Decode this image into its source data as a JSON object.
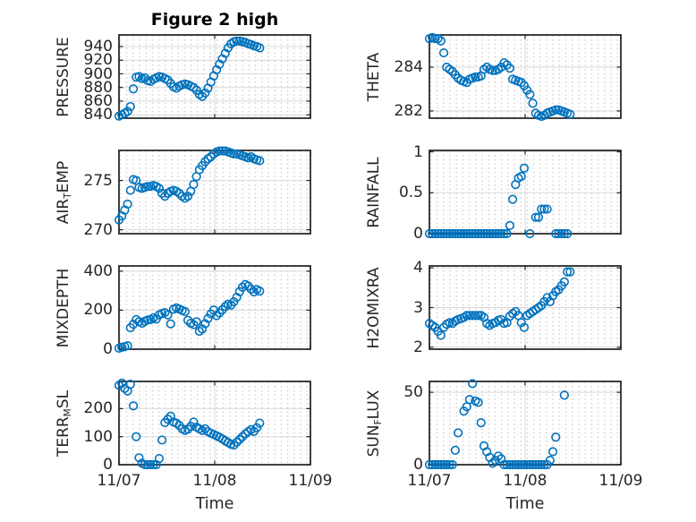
{
  "style": {
    "marker_color": "#0072BD",
    "axis_color": "#1f1f1f",
    "grid_color": "#d9d9d9",
    "minor_dot_color": "#c9c9c9",
    "tick_text_color": "#262626",
    "background": "#ffffff"
  },
  "chart_data": {
    "type": "scatter",
    "title": "Figure 2 high",
    "xlabel": "Time",
    "marker": {
      "shape": "circle-open",
      "color": "#0072BD"
    },
    "layout": {
      "rows": 4,
      "cols": 2,
      "grid": "on",
      "minor_grid": "dotted"
    },
    "x_axis": {
      "xlim_days": [
        0,
        2
      ],
      "tick_positions_days": [
        0,
        1,
        2
      ],
      "tick_labels": [
        "11/07",
        "11/08",
        "11/09"
      ]
    },
    "time_step_days": 0.03,
    "subplots": [
      {
        "name": "PRESSURE",
        "row": 0,
        "col": 0,
        "ylabel_parts": [
          {
            "t": "PRESSURE"
          }
        ],
        "ylim": [
          835,
          957
        ],
        "yticks": [
          840,
          860,
          880,
          900,
          920,
          940
        ],
        "ytick_labels": [
          "840",
          "860",
          "880",
          "900",
          "920",
          "940"
        ],
        "values": [
          838,
          840,
          842,
          845,
          852,
          878,
          895,
          896,
          893,
          894,
          890,
          889,
          892,
          894,
          896,
          895,
          893,
          891,
          886,
          881,
          879,
          882,
          884,
          885,
          884,
          882,
          880,
          876,
          870,
          867,
          872,
          879,
          888,
          897,
          906,
          914,
          922,
          930,
          938,
          944,
          947,
          948,
          948,
          947,
          946,
          944,
          943,
          941,
          940,
          938
        ]
      },
      {
        "name": "THETA",
        "row": 0,
        "col": 1,
        "ylabel_parts": [
          {
            "t": "THETA"
          }
        ],
        "ylim": [
          281.67,
          285.47
        ],
        "yticks": [
          282,
          284
        ],
        "ytick_labels": [
          "282",
          "284"
        ],
        "values": [
          285.3,
          285.35,
          285.3,
          285.3,
          285.2,
          284.65,
          284.0,
          283.9,
          283.8,
          283.65,
          283.5,
          283.4,
          283.35,
          283.3,
          283.45,
          283.5,
          283.55,
          283.55,
          283.6,
          283.9,
          284.0,
          283.9,
          283.85,
          283.85,
          283.9,
          284.0,
          284.2,
          284.1,
          283.95,
          283.45,
          283.4,
          283.35,
          283.3,
          283.15,
          282.95,
          282.75,
          282.35,
          281.9,
          281.8,
          281.75,
          281.8,
          281.9,
          281.95,
          282.0,
          282.05,
          282.05,
          282.0,
          281.95,
          281.9,
          281.85
        ]
      },
      {
        "name": "AIR_TEMP",
        "row": 1,
        "col": 0,
        "ylabel_parts": [
          {
            "t": "AIR"
          },
          {
            "t": "T",
            "sub": true
          },
          {
            "t": "EMP"
          }
        ],
        "ylim": [
          269.6,
          278.05
        ],
        "yticks": [
          270,
          275
        ],
        "ytick_labels": [
          "270",
          "275"
        ],
        "values": [
          271.0,
          271.4,
          272.0,
          272.6,
          274.0,
          275.1,
          275.0,
          274.3,
          274.2,
          274.3,
          274.4,
          274.4,
          274.5,
          274.4,
          274.2,
          273.7,
          273.4,
          273.7,
          273.9,
          274.0,
          273.9,
          273.7,
          273.4,
          273.2,
          273.4,
          273.9,
          274.6,
          275.4,
          276.1,
          276.5,
          276.9,
          277.2,
          277.4,
          277.7,
          277.9,
          278.0,
          278.0,
          278.0,
          277.9,
          277.8,
          277.7,
          277.7,
          277.6,
          277.5,
          277.4,
          277.3,
          277.4,
          277.2,
          277.1,
          277.0
        ]
      },
      {
        "name": "RAINFALL",
        "row": 1,
        "col": 1,
        "ylabel_parts": [
          {
            "t": "RAINFALL"
          }
        ],
        "ylim": [
          0,
          1.017
        ],
        "yticks": [
          0,
          0.5,
          1
        ],
        "ytick_labels": [
          "0",
          "0.5",
          "1"
        ],
        "values": [
          0,
          0,
          0,
          0,
          0,
          0,
          0,
          0,
          0,
          0,
          0,
          0,
          0,
          0,
          0,
          0,
          0,
          0,
          0,
          0,
          0,
          0,
          0,
          0,
          0,
          0,
          0,
          0,
          0.1,
          0.42,
          0.6,
          0.68,
          0.7,
          0.8,
          null,
          0,
          null,
          0.2,
          0.2,
          0.3,
          0.3,
          0.3,
          null,
          null,
          0,
          0,
          0,
          0,
          0,
          null
        ]
      },
      {
        "name": "MIXDEPTH",
        "row": 2,
        "col": 0,
        "ylabel_parts": [
          {
            "t": "MIXDEPTH"
          }
        ],
        "ylim": [
          0,
          427
        ],
        "yticks": [
          0,
          200,
          400
        ],
        "ytick_labels": [
          "0",
          "200",
          "400"
        ],
        "values": [
          5,
          10,
          13,
          18,
          110,
          128,
          152,
          141,
          133,
          143,
          150,
          152,
          161,
          155,
          176,
          183,
          188,
          176,
          130,
          205,
          212,
          206,
          199,
          193,
          148,
          133,
          126,
          141,
          92,
          104,
          131,
          158,
          181,
          201,
          172,
          186,
          202,
          219,
          231,
          226,
          243,
          266,
          295,
          318,
          332,
          324,
          308,
          294,
          306,
          298
        ]
      },
      {
        "name": "H2OMIXRA",
        "row": 2,
        "col": 1,
        "ylabel_parts": [
          {
            "t": "H2OMIXRA"
          }
        ],
        "ylim": [
          1.95,
          4.05
        ],
        "yticks": [
          2,
          3,
          4
        ],
        "ytick_labels": [
          "2",
          "3",
          "4"
        ],
        "values": [
          2.6,
          2.55,
          2.5,
          2.4,
          2.3,
          2.5,
          2.58,
          2.62,
          2.6,
          2.66,
          2.7,
          2.72,
          2.75,
          2.8,
          2.8,
          2.8,
          2.8,
          2.8,
          2.8,
          2.75,
          2.6,
          2.55,
          2.6,
          2.62,
          2.68,
          2.7,
          2.6,
          2.62,
          2.78,
          2.85,
          2.9,
          2.8,
          2.62,
          2.5,
          2.8,
          2.85,
          2.9,
          2.95,
          3.0,
          3.05,
          3.15,
          3.25,
          3.15,
          3.3,
          3.4,
          3.45,
          3.55,
          3.65,
          3.9,
          3.9
        ]
      },
      {
        "name": "TERR_MSL",
        "row": 3,
        "col": 0,
        "ylabel_parts": [
          {
            "t": "TERR"
          },
          {
            "t": "M",
            "sub": true
          },
          {
            "t": "SL"
          }
        ],
        "ylim": [
          0,
          297
        ],
        "yticks": [
          0,
          100,
          200
        ],
        "ytick_labels": [
          "0",
          "100",
          "200"
        ],
        "values": [
          283,
          291,
          272,
          263,
          287,
          210,
          100,
          25,
          5,
          0,
          0,
          0,
          0,
          0,
          22,
          88,
          150,
          162,
          173,
          152,
          148,
          140,
          128,
          122,
          127,
          137,
          152,
          134,
          128,
          122,
          128,
          118,
          112,
          108,
          103,
          98,
          92,
          85,
          79,
          73,
          70,
          80,
          90,
          100,
          110,
          118,
          125,
          119,
          132,
          148
        ]
      },
      {
        "name": "SUN_FLUX",
        "row": 3,
        "col": 1,
        "ylabel_parts": [
          {
            "t": "SUN"
          },
          {
            "t": "F",
            "sub": true
          },
          {
            "t": "LUX"
          }
        ],
        "ylim": [
          0,
          57.5
        ],
        "yticks": [
          0,
          50
        ],
        "ytick_labels": [
          "0",
          "50"
        ],
        "values": [
          0,
          0,
          0,
          0,
          0,
          0,
          0,
          0,
          0,
          10,
          22,
          null,
          37,
          40,
          45,
          56,
          44,
          43,
          29,
          13,
          9,
          5,
          1,
          3,
          6,
          4,
          0,
          0,
          0,
          0,
          0,
          0,
          0,
          0,
          0,
          0,
          0,
          0,
          0,
          0,
          0,
          0,
          3,
          9,
          19,
          null,
          null,
          48,
          null,
          null
        ]
      }
    ]
  }
}
